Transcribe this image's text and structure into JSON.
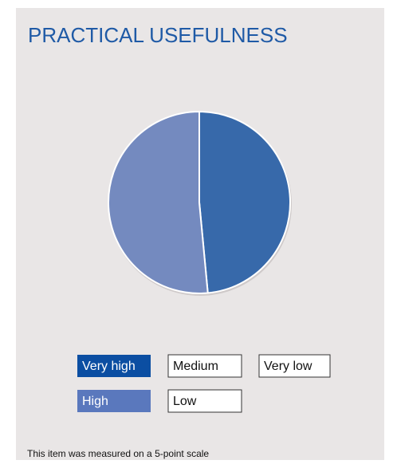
{
  "chart_data": {
    "type": "pie",
    "title": "PRACTICAL USEFULNESS",
    "categories": [
      "Very high",
      "High",
      "Medium",
      "Low",
      "Very low"
    ],
    "values": [
      48.5,
      51.5,
      0,
      0,
      0
    ],
    "colors": [
      "#0b4ea2",
      "#5a78bd",
      "#ffffff",
      "#ffffff",
      "#ffffff"
    ],
    "note": "This item was measured on a 5-point scale"
  }
}
